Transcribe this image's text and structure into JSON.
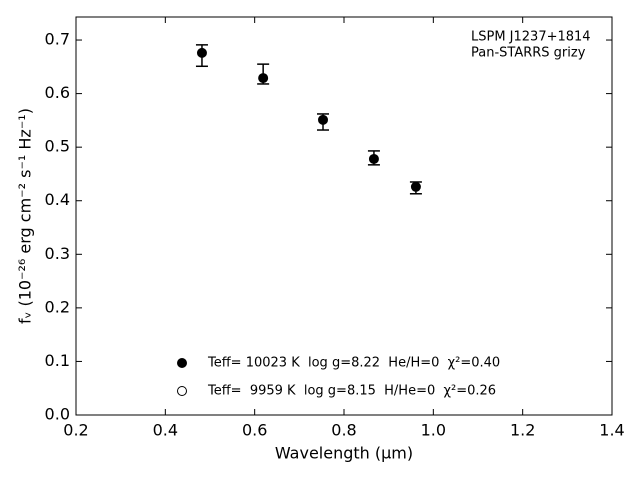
{
  "chart_data": {
    "type": "scatter",
    "x_label": "Wavelength (μm)",
    "y_label": "fᵥ (10⁻²⁶ erg cm⁻² s⁻¹ Hz⁻¹)",
    "annotation": [
      "LSPM J1237+1814",
      "Pan-STARRS grizy"
    ],
    "x": [
      0.482,
      0.619,
      0.753,
      0.867,
      0.961
    ],
    "series": [
      {
        "name": "Teff= 10023 K  log g=8.22  He/H=0  χ²=0.40",
        "color": "#000000",
        "marker": "filled",
        "values": [
          0.676,
          0.629,
          0.551,
          0.478,
          0.426
        ],
        "err_low": [
          0.025,
          0.011,
          0.019,
          0.011,
          0.013
        ],
        "err_high": [
          0.015,
          0.026,
          0.011,
          0.015,
          0.009
        ]
      },
      {
        "name": "Teff=  9959 K  log g=8.15  H/He=0  χ²=0.26",
        "color": "#000000",
        "marker": "open"
      }
    ],
    "xlim": [
      0.2,
      1.4
    ],
    "xticks": [
      0.2,
      0.4,
      0.6,
      0.8,
      {
        "value": 1,
        "label": "1.0"
      },
      1.2,
      1.4
    ],
    "ylim": [
      0,
      0.743
    ],
    "yticks": [
      {
        "value": 0,
        "label": "0.0"
      },
      0.1,
      0.2,
      0.3,
      0.4,
      0.5,
      0.6,
      0.7
    ],
    "grid": false,
    "legend": "lower center"
  }
}
